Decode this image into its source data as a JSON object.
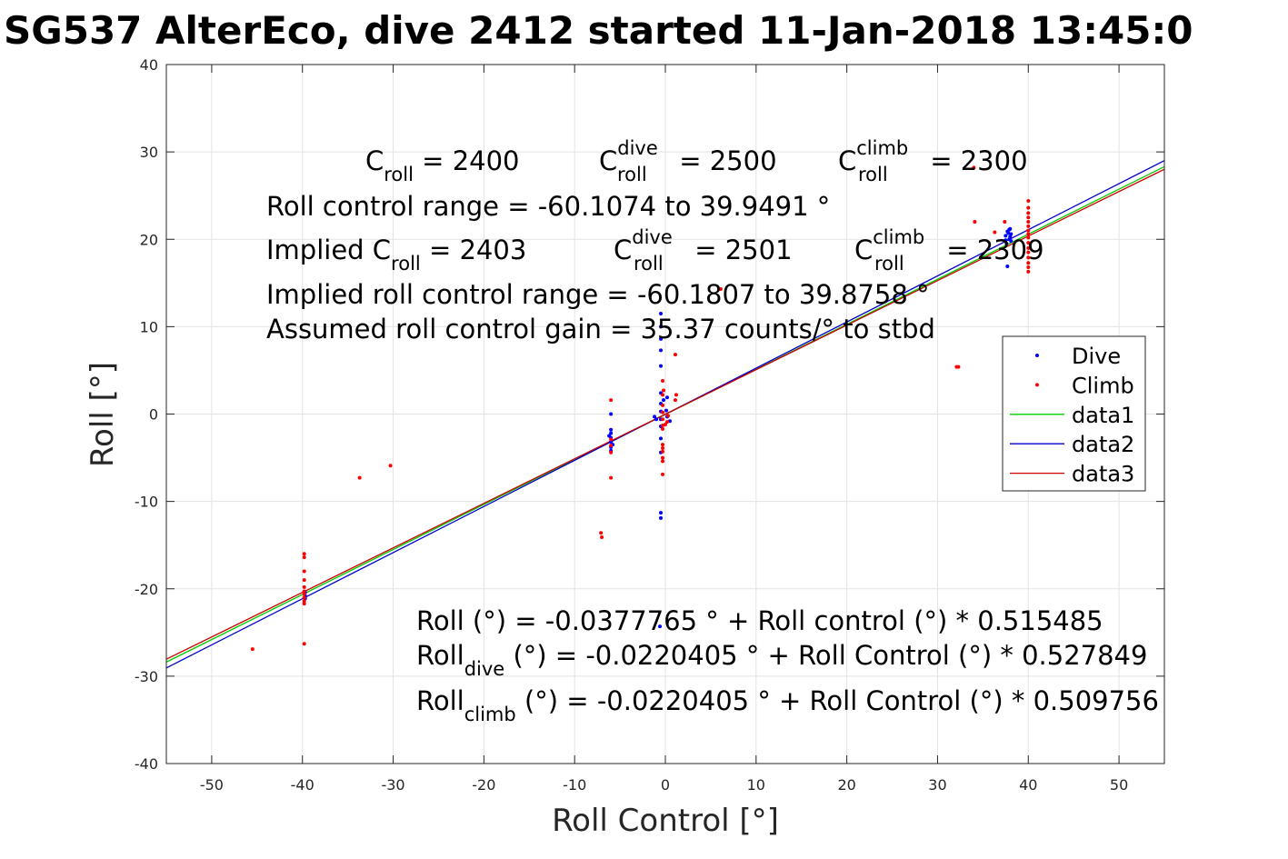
{
  "chart_data": {
    "type": "scatter",
    "title": "SG537 AlterEco, dive 2412 started 11-Jan-2018 13:45:0",
    "xlabel": "Roll Control [°]",
    "ylabel": "Roll [°]",
    "xlim": [
      -55,
      55
    ],
    "ylim": [
      -40,
      40
    ],
    "xticks": [
      -50,
      -40,
      -30,
      -20,
      -10,
      0,
      10,
      20,
      30,
      40,
      50
    ],
    "yticks": [
      -40,
      -30,
      -20,
      -10,
      0,
      10,
      20,
      30,
      40
    ],
    "grid": true,
    "legend_position": "right",
    "series": [
      {
        "name": "Dive",
        "kind": "points",
        "color": "#0000ff",
        "points": [
          [
            -0.5,
            11.5
          ],
          [
            -0.5,
            10.0
          ],
          [
            -0.5,
            8.6
          ],
          [
            -0.5,
            7.3
          ],
          [
            -0.5,
            5.5
          ],
          [
            -0.5,
            2.4
          ],
          [
            -0.5,
            1.2
          ],
          [
            -0.5,
            0.3
          ],
          [
            -0.5,
            -0.6
          ],
          [
            -0.5,
            -1.4
          ],
          [
            -0.5,
            -2.8
          ],
          [
            -0.5,
            -4.4
          ],
          [
            -0.5,
            -11.3
          ],
          [
            -0.5,
            -11.9
          ],
          [
            -0.2,
            1.6
          ],
          [
            0.1,
            0.4
          ],
          [
            0.2,
            -0.3
          ],
          [
            0.5,
            -0.8
          ],
          [
            -1.2,
            -0.3
          ],
          [
            -1.0,
            -0.6
          ],
          [
            0.2,
            1.9
          ],
          [
            -6,
            0.0
          ],
          [
            -6,
            -1.8
          ],
          [
            -6,
            -2.2
          ],
          [
            -6,
            -2.7
          ],
          [
            -6,
            -3.2
          ],
          [
            -6,
            -3.8
          ],
          [
            -6,
            -4.2
          ],
          [
            -6.2,
            -2.5
          ],
          [
            -5.8,
            -3.5
          ],
          [
            -0.6,
            -24.3
          ],
          [
            -39.7,
            -20.4
          ],
          [
            -39.7,
            -21.1
          ],
          [
            -39.7,
            -20.8
          ],
          [
            37.5,
            20.4
          ],
          [
            37.7,
            20.9
          ],
          [
            37.9,
            21.1
          ],
          [
            38.0,
            20.3
          ],
          [
            38.1,
            19.8
          ],
          [
            37.6,
            19.5
          ],
          [
            37.8,
            20.7
          ],
          [
            38.0,
            21.2
          ],
          [
            37.7,
            16.9
          ],
          [
            37.9,
            20.0
          ],
          [
            38.1,
            20.6
          ],
          [
            37.5,
            19.9
          ]
        ]
      },
      {
        "name": "Climb",
        "kind": "points",
        "color": "#ff0000",
        "points": [
          [
            -39.8,
            -16.0
          ],
          [
            -39.8,
            -16.4
          ],
          [
            -39.8,
            -18.0
          ],
          [
            -39.8,
            -19.0
          ],
          [
            -39.8,
            -19.8
          ],
          [
            -39.8,
            -20.3
          ],
          [
            -39.8,
            -20.6
          ],
          [
            -39.8,
            -21.0
          ],
          [
            -39.8,
            -21.4
          ],
          [
            -39.8,
            -21.7
          ],
          [
            -39.8,
            -26.3
          ],
          [
            -45.5,
            -26.9
          ],
          [
            -33.7,
            -7.3
          ],
          [
            -30.3,
            -5.9
          ],
          [
            -7.1,
            -13.6
          ],
          [
            -7.0,
            -14.1
          ],
          [
            -6.0,
            1.6
          ],
          [
            -6.0,
            -7.3
          ],
          [
            -6.0,
            -4.4
          ],
          [
            -6.0,
            -3.6
          ],
          [
            -6.0,
            -2.9
          ],
          [
            -0.3,
            3.8
          ],
          [
            -0.2,
            2.7
          ],
          [
            -0.3,
            2.2
          ],
          [
            -0.3,
            1.0
          ],
          [
            -0.3,
            0.2
          ],
          [
            -0.3,
            -0.6
          ],
          [
            -0.3,
            -1.3
          ],
          [
            -0.3,
            -1.7
          ],
          [
            -0.3,
            -3.5
          ],
          [
            -0.3,
            -3.9
          ],
          [
            -0.3,
            -4.3
          ],
          [
            -0.3,
            -5.0
          ],
          [
            -0.3,
            -5.4
          ],
          [
            -0.3,
            -6.9
          ],
          [
            0.0,
            -1.2
          ],
          [
            0.2,
            -0.9
          ],
          [
            0.3,
            -0.2
          ],
          [
            1.2,
            2.2
          ],
          [
            1.1,
            1.6
          ],
          [
            1.1,
            6.8
          ],
          [
            6.1,
            14.3
          ],
          [
            32.1,
            5.4
          ],
          [
            32.3,
            5.4
          ],
          [
            34.1,
            22.0
          ],
          [
            34.0,
            28.2
          ],
          [
            40,
            24.4
          ],
          [
            40,
            23.6
          ],
          [
            40,
            23.0
          ],
          [
            40,
            22.5
          ],
          [
            40,
            22.0
          ],
          [
            40,
            21.5
          ],
          [
            40,
            21.0
          ],
          [
            40,
            20.6
          ],
          [
            40,
            20.2
          ],
          [
            40,
            19.6
          ],
          [
            40,
            19.0
          ],
          [
            40,
            18.5
          ],
          [
            40,
            17.9
          ],
          [
            40,
            17.3
          ],
          [
            40,
            16.8
          ],
          [
            40,
            16.3
          ],
          [
            36.3,
            20.8
          ],
          [
            37.4,
            22.0
          ]
        ]
      },
      {
        "name": "data1",
        "kind": "line",
        "color": "#00cc00",
        "x": [
          -55,
          55
        ],
        "intercept": -0.0377765,
        "slope": 0.515485
      },
      {
        "name": "data2",
        "kind": "line",
        "color": "#0000cc",
        "x": [
          -55,
          55
        ],
        "intercept": -0.0220405,
        "slope": 0.527849
      },
      {
        "name": "data3",
        "kind": "line",
        "color": "#cc0000",
        "x": [
          -55,
          55
        ],
        "intercept": -0.0220405,
        "slope": 0.509756
      }
    ],
    "annotations": {
      "c_roll_label": "C",
      "c_roll_sub": "roll",
      "c_roll_value": " = 2400",
      "c_dive_label": "C",
      "c_dive_sup": "dive",
      "c_dive_sub": "roll",
      "c_dive_value": " = 2500",
      "c_climb_label": "C",
      "c_climb_sup": "climb",
      "c_climb_sub": "roll",
      "c_climb_value": " = 2300",
      "range_line": "Roll control range = -60.1074 to 39.9491 °",
      "implied_prefix": "Implied C",
      "implied_sub": "roll",
      "implied_value": " = 2403",
      "implied_dive_label": "C",
      "implied_dive_sup": "dive",
      "implied_dive_sub": "roll",
      "implied_dive_value": " = 2501",
      "implied_climb_label": "C",
      "implied_climb_sup": "climb",
      "implied_climb_sub": "roll",
      "implied_climb_value": " = 2309",
      "implied_range_line": "Implied roll control range = -60.1807 to 39.8758 °",
      "gain_line": "Assumed roll control gain = 35.37 counts/° to stbd",
      "fit_all": "Roll (°) = -0.0377765 ° + Roll control (°) * 0.515485",
      "fit_dive_prefix": "Roll",
      "fit_dive_sub": "dive",
      "fit_dive_rest": " (°) = -0.0220405 ° + Roll Control (°) * 0.527849",
      "fit_climb_prefix": "Roll",
      "fit_climb_sub": "climb",
      "fit_climb_rest": " (°) = -0.0220405 ° + Roll Control (°) * 0.509756"
    }
  }
}
